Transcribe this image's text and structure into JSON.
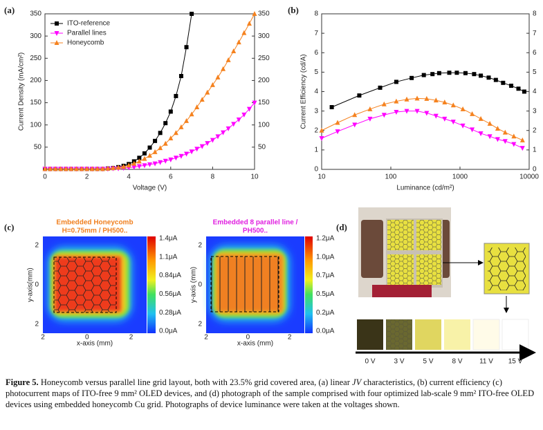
{
  "panel_labels": [
    "(a)",
    "(b)",
    "(c)",
    "(d)"
  ],
  "chart_data": [
    {
      "type": "line",
      "xlabel": "Voltage (V)",
      "ylabel": "Current Density (mA/cm²)",
      "x": [
        0,
        0.25,
        0.5,
        0.75,
        1,
        1.25,
        1.5,
        1.75,
        2,
        2.25,
        2.5,
        2.75,
        3,
        3.25,
        3.5,
        3.75,
        4,
        4.25,
        4.5,
        4.75,
        5,
        5.25,
        5.5,
        5.75,
        6,
        6.25,
        6.5,
        6.75,
        7,
        7.25,
        7.5,
        7.75,
        8,
        8.25,
        8.5,
        8.75,
        9,
        9.25,
        9.5,
        9.75,
        10
      ],
      "xlim": [
        0,
        10
      ],
      "xticks": [
        0,
        2,
        4,
        6,
        8,
        10
      ],
      "ylim": [
        0,
        350
      ],
      "yticks": [
        50,
        100,
        150,
        200,
        250,
        300,
        350
      ],
      "y2lim": [
        0,
        350
      ],
      "y2ticks": [
        50,
        100,
        150,
        200,
        250,
        300,
        350
      ],
      "legend": "upper left",
      "series": [
        {
          "name": "ITO-reference",
          "color": "#000000",
          "marker": "square",
          "values": [
            1,
            1,
            1,
            1,
            1,
            1,
            1,
            1,
            1,
            1,
            1,
            1,
            2,
            3,
            5,
            8,
            12,
            18,
            26,
            36,
            49,
            64,
            82,
            104,
            130,
            165,
            210,
            275,
            350,
            null,
            null,
            null,
            null,
            null,
            null,
            null,
            null,
            null,
            null,
            null,
            null
          ]
        },
        {
          "name": "Parallel lines",
          "color": "#ff00ff",
          "marker": "triangle-down",
          "values": [
            1,
            1,
            1,
            1,
            1,
            1,
            1,
            1,
            1,
            1,
            1,
            1,
            1,
            2,
            2,
            3,
            4,
            5,
            7,
            9,
            11,
            13,
            16,
            19,
            22,
            26,
            30,
            35,
            40,
            46,
            52,
            59,
            66,
            74,
            83,
            92,
            102,
            112,
            123,
            136,
            150
          ]
        },
        {
          "name": "Honeycomb",
          "color": "#f5821f",
          "marker": "triangle-up",
          "values": [
            1,
            1,
            1,
            1,
            1,
            1,
            1,
            1,
            1,
            1,
            1,
            1,
            2,
            3,
            4,
            6,
            9,
            13,
            18,
            24,
            31,
            39,
            48,
            58,
            70,
            82,
            95,
            109,
            124,
            140,
            157,
            173,
            190,
            207,
            226,
            246,
            266,
            286,
            307,
            328,
            350
          ]
        }
      ]
    },
    {
      "type": "line",
      "xscale": "log",
      "xlabel": "Luminance (cd/m²)",
      "ylabel": "Current Efficiency (cd/A)",
      "xlim": [
        10,
        10000
      ],
      "xticks": [
        10,
        100,
        1000,
        10000
      ],
      "ylim": [
        0,
        8
      ],
      "yticks": [
        0,
        1,
        2,
        3,
        4,
        5,
        6,
        7,
        8
      ],
      "y2lim": [
        0,
        8
      ],
      "y2ticks": [
        0,
        1,
        2,
        3,
        4,
        5,
        6,
        7,
        8
      ],
      "series": [
        {
          "color": "#000000",
          "marker": "square",
          "x": [
            14,
            35,
            70,
            120,
            200,
            300,
            400,
            500,
            700,
            900,
            1200,
            1600,
            2000,
            2600,
            3300,
            4200,
            5500,
            7000,
            8500
          ],
          "values": [
            3.2,
            3.8,
            4.2,
            4.5,
            4.7,
            4.85,
            4.9,
            4.95,
            4.97,
            4.97,
            4.95,
            4.9,
            4.82,
            4.72,
            4.6,
            4.45,
            4.3,
            4.15,
            4.0
          ]
        },
        {
          "color": "#f5821f",
          "marker": "triangle-up",
          "x": [
            10,
            17,
            30,
            50,
            80,
            120,
            170,
            240,
            330,
            450,
            600,
            800,
            1100,
            1500,
            2000,
            2700,
            3500,
            4500,
            6000,
            8000
          ],
          "values": [
            2.0,
            2.4,
            2.8,
            3.1,
            3.35,
            3.5,
            3.6,
            3.65,
            3.63,
            3.55,
            3.45,
            3.3,
            3.1,
            2.85,
            2.6,
            2.35,
            2.1,
            1.9,
            1.7,
            1.5
          ]
        },
        {
          "color": "#ff00ff",
          "marker": "triangle-down",
          "x": [
            10,
            17,
            30,
            50,
            80,
            120,
            170,
            240,
            330,
            450,
            600,
            800,
            1100,
            1500,
            2000,
            2700,
            3500,
            4500,
            6000,
            8000
          ],
          "values": [
            1.6,
            1.95,
            2.3,
            2.6,
            2.8,
            2.95,
            3.0,
            3.0,
            2.9,
            2.75,
            2.6,
            2.45,
            2.25,
            2.05,
            1.85,
            1.7,
            1.55,
            1.45,
            1.3,
            1.1
          ]
        }
      ]
    }
  ],
  "heatmaps": [
    {
      "title": [
        "Embedded Honeycomb",
        "H=0.75mm / PH500.."
      ],
      "colorbar_labels": [
        "1.4μA",
        "1.1μA",
        "0.84μA",
        "0.56μA",
        "0.28μA",
        "0.0μA"
      ],
      "x_label": "x-axis (mm)",
      "y_label": "y-axis(mm)",
      "x_tick_labels": [
        "2",
        "0",
        "2"
      ],
      "y_tick_labels": [
        "2",
        "0",
        "2"
      ]
    },
    {
      "title": [
        "Embedded 8 parallel line /",
        "PH500.."
      ],
      "colorbar_labels": [
        "1.2μA",
        "1.0μA",
        "0.7μA",
        "0.5μA",
        "0.2μA",
        "0.0μA"
      ],
      "x_label": "x-axis (mm)",
      "y_label": "y-axis (mm)",
      "x_tick_labels": [
        "2",
        "0",
        "2"
      ],
      "y_tick_labels": [
        "2",
        "0",
        "2"
      ]
    }
  ],
  "photo": {
    "voltages": [
      "0 V",
      "3 V",
      "5 V",
      "8 V",
      "11 V",
      "15 V"
    ]
  },
  "caption": {
    "label": "Figure 5.",
    "parts": [
      " Honeycomb versus parallel line grid layout, both with 23.5% grid covered area, (a) linear ",
      "JV",
      " characteristics, (b) current efficiency (c) photocurrent maps of ITO-free 9 mm² OLED devices, and (d) photograph of the sample comprised with four optimized lab-scale 9 mm² ITO-free OLED devices using embedded honeycomb Cu grid. Photographs of device luminance were taken at the voltages shown."
    ]
  }
}
